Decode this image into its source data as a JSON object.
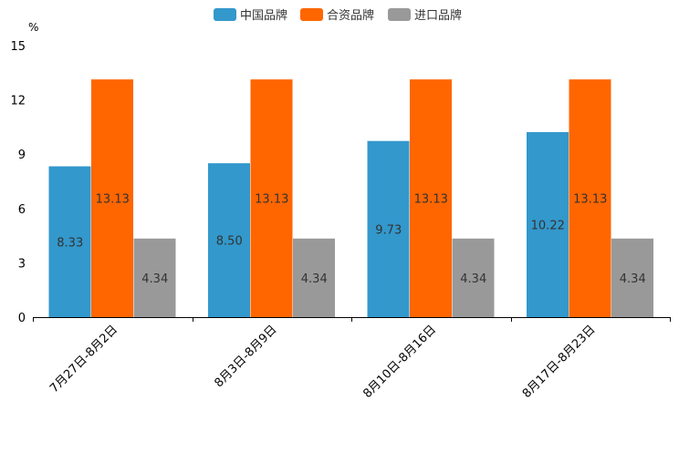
{
  "chart_data": {
    "type": "bar",
    "title": "",
    "unit": "%",
    "xlabel": "",
    "ylabel": "",
    "categories": [
      "7月27日-8月2日",
      "8月3日-8月9日",
      "8月10日-8月16日",
      "8月17日-8月23日"
    ],
    "series": [
      {
        "name": "中国品牌",
        "color": "#3398cc",
        "values": [
          8.33,
          8.5,
          9.73,
          10.22
        ]
      },
      {
        "name": "合资品牌",
        "color": "#ff6600",
        "values": [
          13.13,
          13.13,
          13.13,
          13.13
        ]
      },
      {
        "name": "进口品牌",
        "color": "#999999",
        "values": [
          4.34,
          4.34,
          4.34,
          4.34
        ]
      }
    ],
    "ylim": [
      0,
      15
    ],
    "yticks": [
      0,
      3,
      6,
      9,
      12,
      15
    ],
    "legend": "top-center",
    "grid": false
  }
}
